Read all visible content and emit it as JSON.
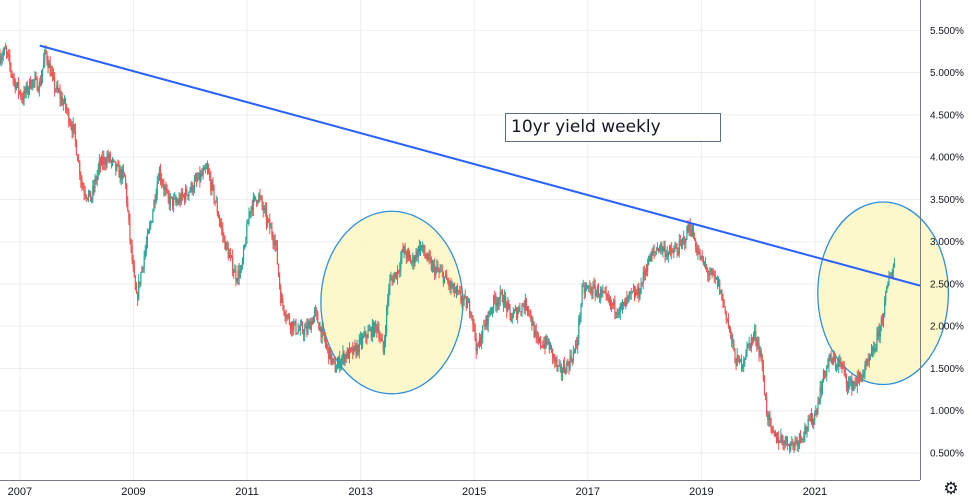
{
  "chart_data": {
    "type": "candlestick",
    "annotation": "10yr yield weekly",
    "y_ticks": [
      "5.500%",
      "5.000%",
      "4.500%",
      "4.000%",
      "3.500%",
      "3.000%",
      "2.500%",
      "2.000%",
      "1.500%",
      "1.000%",
      "0.500%"
    ],
    "y_tick_values": [
      5.5,
      5.0,
      4.5,
      4.0,
      3.5,
      3.0,
      2.5,
      2.0,
      1.5,
      1.0,
      0.5
    ],
    "x_ticks": [
      "2007",
      "2009",
      "2011",
      "2013",
      "2015",
      "2017",
      "2019",
      "2021"
    ],
    "x_tick_values": [
      2007.0,
      2009.0,
      2011.0,
      2013.0,
      2015.0,
      2017.0,
      2019.0,
      2021.0
    ],
    "xlim": [
      2006.65,
      2022.85
    ],
    "ylim": [
      0.18,
      5.86
    ],
    "up_color": "#26a69a",
    "down_color": "#ef5350",
    "trendline": {
      "color": "#2962ff",
      "from": {
        "x": 2007.35,
        "y": 5.32
      },
      "to": {
        "x": 2022.85,
        "y": 2.48
      }
    },
    "highlights": [
      {
        "center_x": 2013.55,
        "center_y": 2.28,
        "rx": 1.25,
        "ry": 1.08,
        "fill": "#fdf6c3",
        "stroke": "#2e8fdc"
      },
      {
        "center_x": 2022.2,
        "center_y": 2.39,
        "rx": 1.15,
        "ry": 1.08,
        "fill": "#fdf6c3",
        "stroke": "#2e8fdc"
      }
    ],
    "anchor_points": [
      [
        2006.65,
        5.2
      ],
      [
        2006.75,
        5.25
      ],
      [
        2006.9,
        4.9
      ],
      [
        2007.05,
        4.7
      ],
      [
        2007.2,
        4.9
      ],
      [
        2007.35,
        4.85
      ],
      [
        2007.45,
        5.25
      ],
      [
        2007.6,
        4.85
      ],
      [
        2007.8,
        4.6
      ],
      [
        2007.95,
        4.3
      ],
      [
        2008.1,
        3.65
      ],
      [
        2008.25,
        3.5
      ],
      [
        2008.4,
        3.9
      ],
      [
        2008.55,
        4.0
      ],
      [
        2008.7,
        3.85
      ],
      [
        2008.85,
        3.75
      ],
      [
        2008.95,
        2.95
      ],
      [
        2009.05,
        2.3
      ],
      [
        2009.15,
        2.7
      ],
      [
        2009.3,
        3.2
      ],
      [
        2009.45,
        3.85
      ],
      [
        2009.6,
        3.5
      ],
      [
        2009.75,
        3.45
      ],
      [
        2009.9,
        3.55
      ],
      [
        2010.1,
        3.7
      ],
      [
        2010.3,
        3.85
      ],
      [
        2010.45,
        3.45
      ],
      [
        2010.6,
        3.0
      ],
      [
        2010.8,
        2.6
      ],
      [
        2010.9,
        2.65
      ],
      [
        2011.05,
        3.4
      ],
      [
        2011.2,
        3.55
      ],
      [
        2011.35,
        3.25
      ],
      [
        2011.5,
        3.0
      ],
      [
        2011.6,
        2.3
      ],
      [
        2011.75,
        2.05
      ],
      [
        2011.9,
        1.95
      ],
      [
        2012.05,
        1.95
      ],
      [
        2012.2,
        2.15
      ],
      [
        2012.4,
        1.75
      ],
      [
        2012.55,
        1.5
      ],
      [
        2012.7,
        1.65
      ],
      [
        2012.9,
        1.7
      ],
      [
        2013.1,
        1.9
      ],
      [
        2013.3,
        2.0
      ],
      [
        2013.4,
        1.7
      ],
      [
        2013.5,
        2.5
      ],
      [
        2013.65,
        2.65
      ],
      [
        2013.75,
        2.9
      ],
      [
        2013.9,
        2.75
      ],
      [
        2014.05,
        2.95
      ],
      [
        2014.25,
        2.7
      ],
      [
        2014.45,
        2.6
      ],
      [
        2014.6,
        2.45
      ],
      [
        2014.8,
        2.3
      ],
      [
        2014.95,
        2.2
      ],
      [
        2015.05,
        1.7
      ],
      [
        2015.15,
        1.95
      ],
      [
        2015.35,
        2.3
      ],
      [
        2015.5,
        2.35
      ],
      [
        2015.65,
        2.1
      ],
      [
        2015.85,
        2.25
      ],
      [
        2015.95,
        2.25
      ],
      [
        2016.1,
        1.8
      ],
      [
        2016.3,
        1.8
      ],
      [
        2016.5,
        1.45
      ],
      [
        2016.65,
        1.55
      ],
      [
        2016.8,
        1.75
      ],
      [
        2016.9,
        2.4
      ],
      [
        2017.0,
        2.45
      ],
      [
        2017.2,
        2.4
      ],
      [
        2017.4,
        2.25
      ],
      [
        2017.6,
        2.2
      ],
      [
        2017.75,
        2.35
      ],
      [
        2017.9,
        2.4
      ],
      [
        2018.05,
        2.75
      ],
      [
        2018.25,
        2.95
      ],
      [
        2018.45,
        2.85
      ],
      [
        2018.65,
        2.95
      ],
      [
        2018.8,
        3.2
      ],
      [
        2018.95,
        2.85
      ],
      [
        2019.1,
        2.65
      ],
      [
        2019.3,
        2.5
      ],
      [
        2019.45,
        2.1
      ],
      [
        2019.6,
        1.6
      ],
      [
        2019.7,
        1.55
      ],
      [
        2019.85,
        1.8
      ],
      [
        2019.95,
        1.9
      ],
      [
        2020.05,
        1.65
      ],
      [
        2020.15,
        1.0
      ],
      [
        2020.25,
        0.7
      ],
      [
        2020.45,
        0.65
      ],
      [
        2020.6,
        0.6
      ],
      [
        2020.75,
        0.7
      ],
      [
        2020.9,
        0.85
      ],
      [
        2021.0,
        0.95
      ],
      [
        2021.15,
        1.4
      ],
      [
        2021.25,
        1.6
      ],
      [
        2021.45,
        1.55
      ],
      [
        2021.6,
        1.3
      ],
      [
        2021.75,
        1.35
      ],
      [
        2021.9,
        1.5
      ],
      [
        2022.0,
        1.65
      ],
      [
        2022.1,
        1.85
      ],
      [
        2022.2,
        2.15
      ],
      [
        2022.3,
        2.55
      ],
      [
        2022.4,
        2.75
      ]
    ]
  },
  "icons": {
    "settings": "gear-icon"
  }
}
